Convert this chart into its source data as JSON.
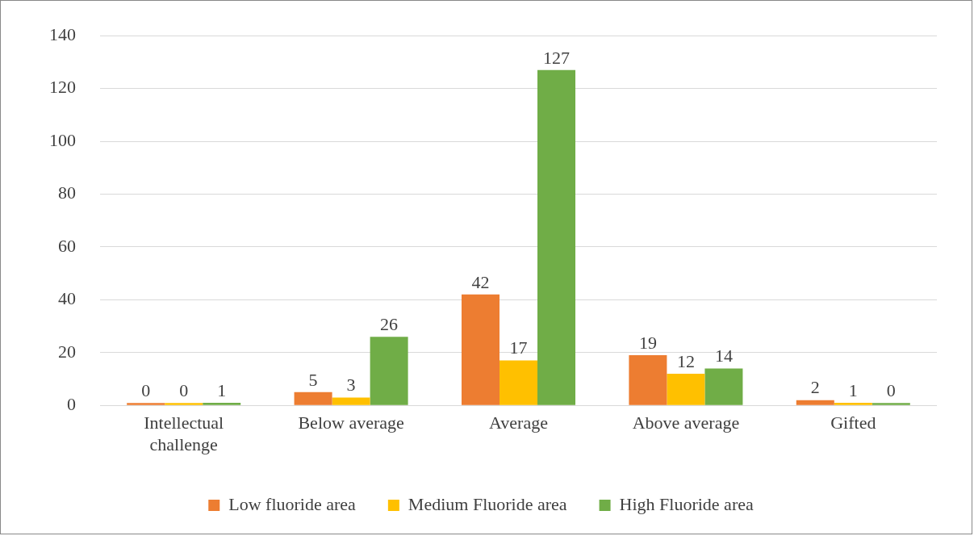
{
  "chart_data": {
    "type": "bar",
    "categories": [
      "Intellectual challenge",
      "Below average",
      "Average",
      "Above average",
      "Gifted"
    ],
    "series": [
      {
        "name": "Low fluoride area",
        "color": "#ed7d31",
        "values": [
          0,
          5,
          42,
          19,
          2
        ]
      },
      {
        "name": "Medium Fluoride area",
        "color": "#ffc000",
        "values": [
          0,
          3,
          17,
          12,
          1
        ]
      },
      {
        "name": "High Fluoride area",
        "color": "#70ad47",
        "values": [
          1,
          26,
          127,
          14,
          0
        ]
      }
    ],
    "ylim": [
      0,
      140
    ],
    "yticks": [
      0,
      20,
      40,
      60,
      80,
      100,
      120,
      140
    ],
    "grid": "y",
    "legend": "bottom",
    "data_labels": true
  }
}
